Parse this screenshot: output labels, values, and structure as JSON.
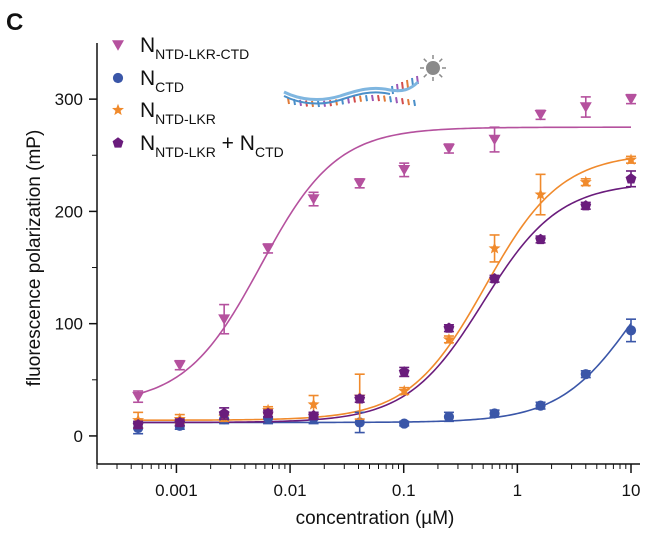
{
  "panel_label": "C",
  "chart_data": {
    "type": "scatter",
    "title": "",
    "xlabel": "concentration (µM)",
    "ylabel": "fluorescence polarization (mP)",
    "xscale": "log",
    "xlim": [
      0.0002,
      12
    ],
    "ylim": [
      -25,
      350
    ],
    "x_ticks": [
      0.001,
      0.01,
      0.1,
      1,
      10
    ],
    "x_tick_labels": [
      "0.001",
      "0.01",
      "0.1",
      "1",
      "10"
    ],
    "y_ticks": [
      0,
      100,
      200,
      300
    ],
    "y_tick_labels": [
      "0",
      "100",
      "200",
      "300"
    ],
    "grid": false,
    "legend_position": "top-left",
    "legend_plus": "+",
    "x": [
      0.00046,
      0.00107,
      0.00263,
      0.0064,
      0.0161,
      0.041,
      0.101,
      0.25,
      0.63,
      1.6,
      4.0,
      10.0
    ],
    "series": [
      {
        "name_main": "N",
        "name_sub": "NTD-LKR-CTD",
        "name_suffix_main": "",
        "name_suffix_sub": "",
        "color": "#b5519e",
        "marker": "triangle-down",
        "values": [
          35,
          63,
          104,
          167,
          211,
          225,
          237,
          256,
          264,
          286,
          293,
          300
        ],
        "errors": [
          5,
          4,
          13,
          4,
          6,
          4,
          6,
          4,
          11,
          4,
          9,
          4
        ],
        "fit": {
          "bottom": 28,
          "top": 275,
          "ec50": 0.0055,
          "hill": 1.3
        }
      },
      {
        "name_main": "N",
        "name_sub": "CTD",
        "name_suffix_main": "",
        "name_suffix_sub": "",
        "color": "#3a56a8",
        "marker": "circle",
        "values": [
          7,
          9,
          15,
          16,
          16,
          12,
          11,
          17,
          20,
          27,
          55,
          94
        ],
        "errors": [
          5,
          3,
          4,
          5,
          5,
          9,
          2,
          4,
          3,
          3,
          3,
          10
        ],
        "fit": {
          "bottom": 12,
          "top": 200,
          "ec50": 11,
          "hill": 1.3
        }
      },
      {
        "name_main": "N",
        "name_sub": "NTD-LKR",
        "name_suffix_main": "",
        "name_suffix_sub": "",
        "color": "#f08a2c",
        "marker": "star",
        "values": [
          14,
          15,
          17,
          23,
          28,
          35,
          40,
          86,
          167,
          215,
          226,
          246
        ],
        "errors": [
          7,
          4,
          4,
          3,
          8,
          20,
          3,
          3,
          12,
          18,
          3,
          3
        ],
        "fit": {
          "bottom": 14,
          "top": 252,
          "ec50": 0.52,
          "hill": 1.3
        }
      },
      {
        "name_main": "N",
        "name_sub": "NTD-LKR",
        "name_suffix_main": " + N",
        "name_suffix_sub": "CTD",
        "color": "#6a1c7c",
        "marker": "pentagon",
        "values": [
          10,
          12,
          20,
          20,
          18,
          33,
          57,
          96,
          140,
          175,
          205,
          229
        ],
        "errors": [
          3,
          3,
          5,
          3,
          3,
          3,
          4,
          3,
          3,
          3,
          3,
          7
        ],
        "fit": {
          "bottom": 12,
          "top": 226,
          "ec50": 0.5,
          "hill": 1.3
        }
      }
    ]
  }
}
